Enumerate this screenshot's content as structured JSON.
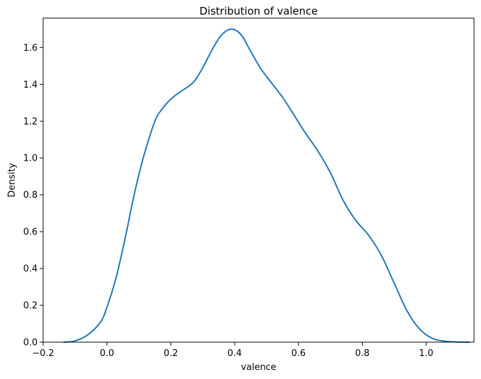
{
  "chart_data": {
    "type": "line",
    "title": "Distribution of valence",
    "xlabel": "valence",
    "ylabel": "Density",
    "xlim": [
      -0.2,
      1.15
    ],
    "ylim": [
      0.0,
      1.76
    ],
    "xticks": [
      -0.2,
      0.0,
      0.2,
      0.4,
      0.6,
      0.8,
      1.0
    ],
    "xtick_labels": [
      "−0.2",
      "0.0",
      "0.2",
      "0.4",
      "0.6",
      "0.8",
      "1.0"
    ],
    "yticks": [
      0.0,
      0.2,
      0.4,
      0.6,
      0.8,
      1.0,
      1.2,
      1.4,
      1.6
    ],
    "ytick_labels": [
      "0.0",
      "0.2",
      "0.4",
      "0.6",
      "0.8",
      "1.0",
      "1.2",
      "1.4",
      "1.6"
    ],
    "grid": false,
    "line_color": "#1f77b4",
    "series": [
      {
        "x": [
          -0.135,
          -0.1,
          -0.06,
          -0.02,
          0.0,
          0.03,
          0.06,
          0.08,
          0.1,
          0.12,
          0.15,
          0.17,
          0.2,
          0.23,
          0.27,
          0.3,
          0.33,
          0.36,
          0.39,
          0.42,
          0.45,
          0.48,
          0.51,
          0.55,
          0.58,
          0.62,
          0.66,
          0.7,
          0.74,
          0.78,
          0.82,
          0.86,
          0.9,
          0.94,
          0.98,
          1.02,
          1.06,
          1.1,
          1.135
        ],
        "y": [
          0.0,
          0.007,
          0.04,
          0.11,
          0.19,
          0.36,
          0.59,
          0.76,
          0.91,
          1.04,
          1.2,
          1.26,
          1.32,
          1.36,
          1.41,
          1.49,
          1.59,
          1.67,
          1.7,
          1.67,
          1.58,
          1.49,
          1.42,
          1.33,
          1.25,
          1.14,
          1.04,
          0.92,
          0.77,
          0.66,
          0.58,
          0.47,
          0.32,
          0.17,
          0.07,
          0.02,
          0.005,
          0.001,
          0.0
        ]
      }
    ]
  }
}
